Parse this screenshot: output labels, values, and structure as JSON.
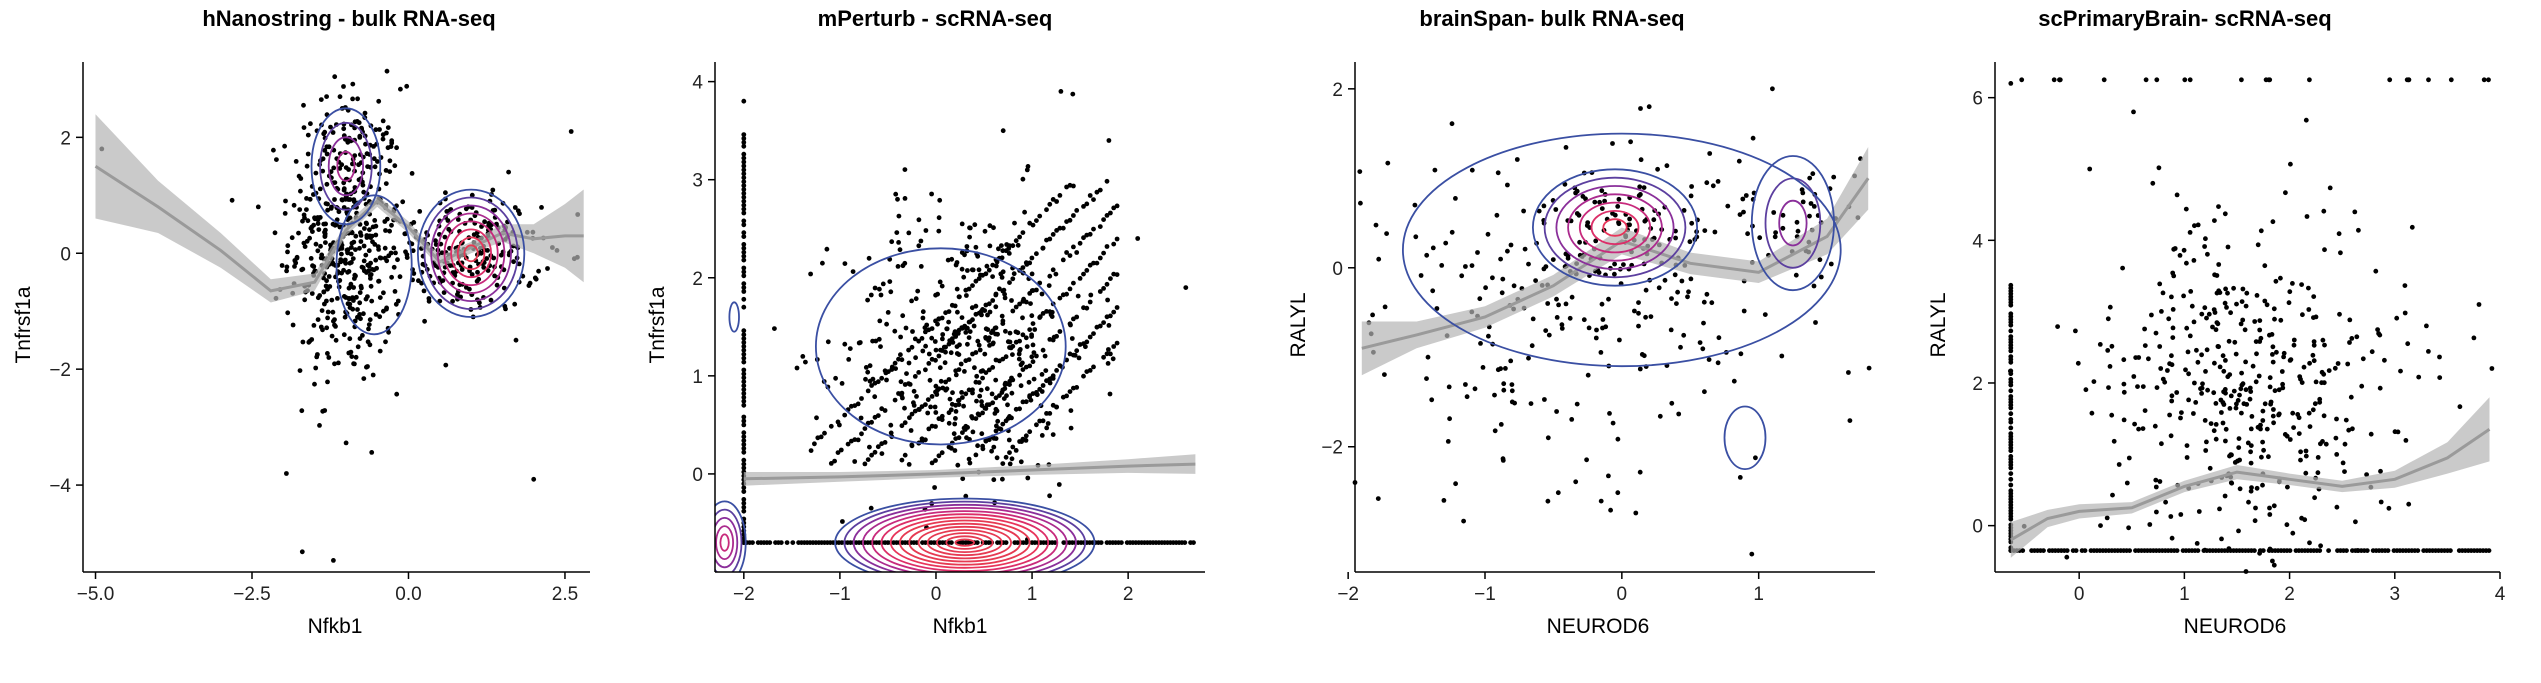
{
  "chart_data": [
    {
      "type": "scatter",
      "title": "hNanostring - bulk RNA-seq",
      "xlabel": "Nfkb1",
      "ylabel": "Tnfrsf1a",
      "xlim": [
        -5.2,
        2.9
      ],
      "ylim": [
        -5.5,
        3.3
      ],
      "xticks": [
        -5.0,
        -2.5,
        0.0,
        2.5
      ],
      "xtick_labels": [
        "−5.0",
        "−2.5",
        "0.0",
        "2.5"
      ],
      "yticks": [
        -4,
        -2,
        0,
        2
      ],
      "ytick_labels": [
        "−4",
        "−2",
        "0",
        "2"
      ],
      "grid": false,
      "legend": "none",
      "point_clusters": [
        {
          "cx": -1.0,
          "cy": 0.3,
          "sx": 0.45,
          "sy": 1.3,
          "n": 520
        },
        {
          "cx": 0.9,
          "cy": 0.0,
          "sx": 0.6,
          "sy": 0.5,
          "n": 240
        }
      ],
      "outliers": [
        [
          -4.9,
          1.8
        ],
        [
          -1.2,
          -5.3
        ],
        [
          2.6,
          2.1
        ],
        [
          2.0,
          -3.9
        ],
        [
          -1.95,
          -3.8
        ],
        [
          1.6,
          1.4
        ],
        [
          2.3,
          0.1
        ],
        [
          -0.6,
          2.2
        ],
        [
          1.3,
          0.9
        ],
        [
          -2.4,
          0.8
        ]
      ],
      "smooth": {
        "x": [
          -5.0,
          -4.0,
          -3.0,
          -2.2,
          -1.5,
          -1.0,
          -0.5,
          0.0,
          0.5,
          1.0,
          1.5,
          2.0,
          2.5,
          2.8
        ],
        "y": [
          1.5,
          0.8,
          0.05,
          -0.65,
          -0.5,
          0.4,
          0.9,
          0.45,
          -0.15,
          0.1,
          0.35,
          0.25,
          0.3,
          0.3
        ],
        "se": [
          0.9,
          0.45,
          0.3,
          0.2,
          0.15,
          0.1,
          0.1,
          0.1,
          0.1,
          0.1,
          0.15,
          0.25,
          0.55,
          0.8
        ]
      },
      "density": [
        {
          "cx": -1.0,
          "cy": 1.5,
          "rx": 0.55,
          "ry": 1.0,
          "levels": 4
        },
        {
          "cx": -0.55,
          "cy": -0.2,
          "rx": 0.6,
          "ry": 1.2,
          "levels": 1
        },
        {
          "cx": 1.0,
          "cy": 0.0,
          "rx": 0.85,
          "ry": 1.1,
          "levels": 8
        }
      ]
    },
    {
      "type": "scatter",
      "title": "mPerturb - scRNA-seq",
      "xlabel": "Nfkb1",
      "ylabel": "Tnfrsf1a",
      "xlim": [
        -2.3,
        2.8
      ],
      "ylim": [
        -1.0,
        4.2
      ],
      "xticks": [
        -2,
        -1,
        0,
        1,
        2
      ],
      "xtick_labels": [
        "−2",
        "−1",
        "0",
        "1",
        "2"
      ],
      "yticks": [
        0,
        1,
        2,
        3,
        4
      ],
      "ytick_labels": [
        "0",
        "1",
        "2",
        "3",
        "4"
      ],
      "grid": false,
      "legend": "none",
      "floor_y": -0.7,
      "left_column_x": -2.0,
      "diagonal_lines": {
        "slope": 1,
        "x_range": [
          -1.3,
          1.9
        ],
        "offsets": [
          0.45,
          0.8,
          1.15,
          1.5,
          1.85,
          2.2,
          2.55
        ]
      },
      "point_clusters": [
        {
          "cx": 0.35,
          "cy": 1.3,
          "sx": 0.65,
          "sy": 0.75,
          "n": 420
        }
      ],
      "outliers": [
        [
          -2.0,
          3.8
        ],
        [
          1.3,
          3.9
        ],
        [
          0.7,
          3.5
        ],
        [
          1.8,
          3.4
        ],
        [
          2.1,
          2.4
        ],
        [
          2.6,
          1.9
        ],
        [
          -0.4,
          2.8
        ],
        [
          0.95,
          3.1
        ]
      ],
      "smooth": {
        "x": [
          -2.0,
          -1.0,
          0.0,
          1.0,
          2.0,
          2.7
        ],
        "y": [
          -0.05,
          -0.03,
          0.0,
          0.04,
          0.08,
          0.1
        ],
        "se": [
          0.07,
          0.05,
          0.04,
          0.05,
          0.07,
          0.1
        ]
      },
      "density": [
        {
          "cx": 0.3,
          "cy": -0.7,
          "rx": 1.35,
          "ry": 0.45,
          "levels": 14
        },
        {
          "cx": -2.2,
          "cy": -0.7,
          "rx": 0.22,
          "ry": 0.42,
          "levels": 5
        },
        {
          "cx": 0.05,
          "cy": 1.3,
          "rx": 1.3,
          "ry": 1.0,
          "levels": 1
        },
        {
          "cx": -2.1,
          "cy": 1.6,
          "rx": 0.05,
          "ry": 0.15,
          "levels": 1
        }
      ]
    },
    {
      "type": "scatter",
      "title": "brainSpan- bulk RNA-seq",
      "xlabel": "NEUROD6",
      "ylabel": "RALYL",
      "xlim": [
        -1.95,
        1.85
      ],
      "ylim": [
        -3.4,
        2.3
      ],
      "xticks": [
        -2,
        -1,
        0,
        1
      ],
      "xtick_labels": [
        "−2",
        "−1",
        "0",
        "1"
      ],
      "yticks": [
        -2,
        0,
        2
      ],
      "ytick_labels": [
        "−2",
        "0",
        "2"
      ],
      "grid": false,
      "legend": "none",
      "point_clusters": [
        {
          "cx": 0.0,
          "cy": 0.4,
          "sx": 0.35,
          "sy": 0.35,
          "n": 110
        },
        {
          "cx": 1.25,
          "cy": 0.5,
          "sx": 0.25,
          "sy": 0.4,
          "n": 45
        },
        {
          "cx": -0.5,
          "cy": -0.6,
          "sx": 0.9,
          "sy": 1.0,
          "n": 230
        }
      ],
      "outliers": [
        [
          -1.95,
          -2.4
        ],
        [
          0.95,
          -3.2
        ],
        [
          1.1,
          2.0
        ],
        [
          -1.3,
          -2.6
        ],
        [
          0.2,
          1.8
        ]
      ],
      "smooth": {
        "x": [
          -1.9,
          -1.5,
          -1.0,
          -0.5,
          0.0,
          0.5,
          1.0,
          1.5,
          1.8
        ],
        "y": [
          -0.9,
          -0.75,
          -0.55,
          -0.2,
          0.3,
          0.05,
          -0.05,
          0.35,
          1.0
        ],
        "se": [
          0.3,
          0.15,
          0.12,
          0.12,
          0.15,
          0.12,
          0.12,
          0.2,
          0.35
        ]
      },
      "density": [
        {
          "cx": -0.05,
          "cy": 0.45,
          "rx": 0.6,
          "ry": 0.65,
          "levels": 7
        },
        {
          "cx": 1.25,
          "cy": 0.5,
          "rx": 0.3,
          "ry": 0.75,
          "levels": 3
        },
        {
          "cx": 0.0,
          "cy": 0.2,
          "rx": 1.6,
          "ry": 1.3,
          "levels": 1
        },
        {
          "cx": 0.9,
          "cy": -1.9,
          "rx": 0.15,
          "ry": 0.35,
          "levels": 1
        }
      ]
    },
    {
      "type": "scatter",
      "title": "scPrimaryBrain- scRNA-seq",
      "xlabel": "NEUROD6",
      "ylabel": "RALYL",
      "xlim": [
        -0.8,
        4.0
      ],
      "ylim": [
        -0.65,
        6.5
      ],
      "xticks": [
        0,
        1,
        2,
        3,
        4
      ],
      "xtick_labels": [
        "0",
        "1",
        "2",
        "3",
        "4"
      ],
      "yticks": [
        0,
        2,
        4,
        6
      ],
      "ytick_labels": [
        "0",
        "2",
        "4",
        "6"
      ],
      "grid": false,
      "legend": "none",
      "floor_y": -0.35,
      "left_column_x": -0.65,
      "top_row_y": 6.25,
      "point_clusters": [
        {
          "cx": 1.6,
          "cy": 1.9,
          "sx": 0.75,
          "sy": 1.2,
          "n": 450
        }
      ],
      "outliers": [
        [
          -0.65,
          6.2
        ],
        [
          3.85,
          6.25
        ],
        [
          0.1,
          5.0
        ],
        [
          0.7,
          4.8
        ],
        [
          3.8,
          3.1
        ],
        [
          3.3,
          2.8
        ]
      ],
      "smooth": {
        "x": [
          -0.65,
          -0.3,
          0.0,
          0.5,
          1.0,
          1.5,
          2.0,
          2.5,
          3.0,
          3.5,
          3.9
        ],
        "y": [
          -0.2,
          0.1,
          0.2,
          0.25,
          0.55,
          0.75,
          0.65,
          0.55,
          0.65,
          0.95,
          1.35
        ],
        "se": [
          0.25,
          0.12,
          0.1,
          0.08,
          0.08,
          0.1,
          0.08,
          0.08,
          0.12,
          0.22,
          0.45
        ]
      },
      "density": []
    }
  ]
}
